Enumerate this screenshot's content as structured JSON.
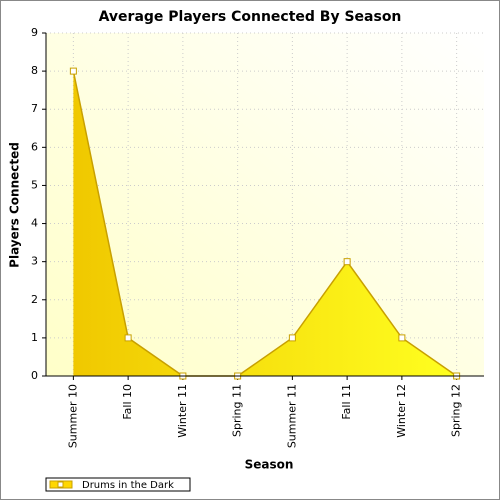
{
  "chart_data": {
    "type": "area",
    "title": "Average Players Connected By Season",
    "x_label": "Season",
    "y_label": "Players Connected",
    "categories": [
      "Summer 10",
      "Fall 10",
      "Winter 11",
      "Spring 11",
      "Summer 11",
      "Fall 11",
      "Winter 12",
      "Spring 12"
    ],
    "series": [
      {
        "name": "Drums in the Dark",
        "color": "#ffd700",
        "values": [
          8,
          1,
          0,
          0,
          1,
          3,
          1,
          0
        ]
      }
    ],
    "ylim": [
      0,
      9
    ],
    "yticks": [
      0,
      1,
      2,
      3,
      4,
      5,
      6,
      7,
      8,
      9
    ],
    "grid": true,
    "legend": "bottom-left"
  }
}
